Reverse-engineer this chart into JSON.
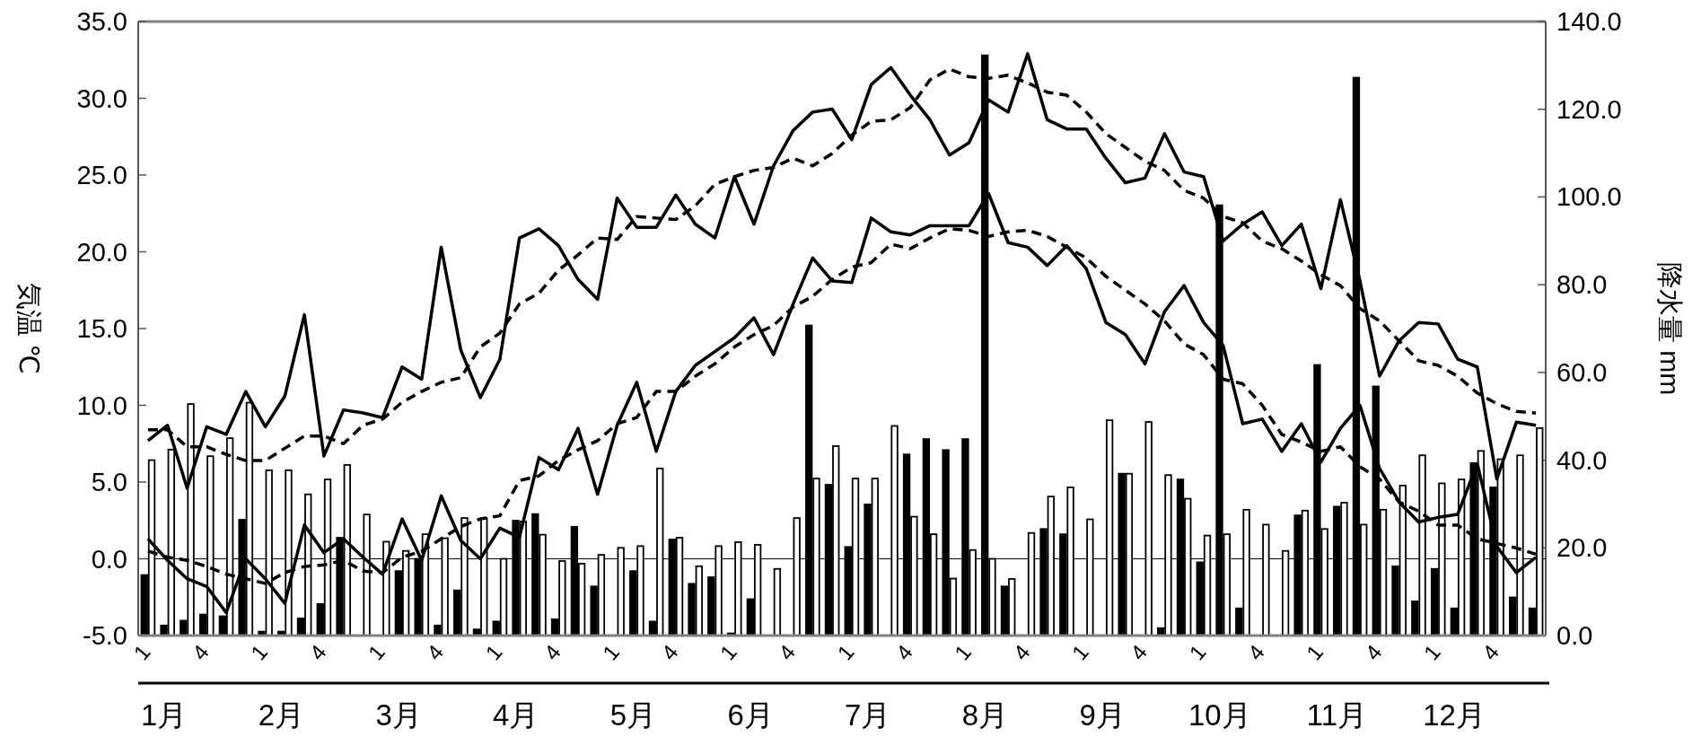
{
  "chart_data": {
    "type": "bar",
    "categories": [
      "1",
      null,
      null,
      "4",
      null,
      null,
      "1",
      null,
      null,
      "4",
      null,
      null,
      "1",
      null,
      null,
      "4",
      null,
      null,
      "1",
      null,
      null,
      "4",
      null,
      null,
      "1",
      null,
      null,
      "4",
      null,
      null,
      "1",
      null,
      null,
      "4",
      null,
      null,
      "1",
      null,
      null,
      "4",
      null,
      null,
      "1",
      null,
      null,
      "4",
      null,
      null,
      "1",
      null,
      null,
      "4",
      null,
      null,
      "1",
      null,
      null,
      "4",
      null,
      null,
      "1",
      null,
      null,
      "4",
      null,
      null,
      "1",
      null,
      null,
      "4",
      null,
      null
    ],
    "series": [
      {
        "axis": "y2",
        "color": "#000000",
        "values": [
          13.8,
          2.3,
          3.4,
          4.8,
          4.4,
          26.4,
          0.9,
          0.9,
          3.9,
          7.2,
          22.3,
          0,
          0,
          14.7,
          17.5,
          2.3,
          10.3,
          1.4,
          3.2,
          26.2,
          27.7,
          3.7,
          24.8,
          11.2,
          0,
          14.7,
          3.2,
          21.9,
          11.8,
          13.3,
          0.5,
          8.3,
          0,
          0,
          70.7,
          34.4,
          20.2,
          29.9,
          0,
          41.3,
          44.8,
          42.3,
          44.8,
          132.3,
          11.2,
          0,
          24.3,
          23.1,
          0,
          0,
          36.9,
          0,
          1.7,
          35.6,
          16.7,
          98.1,
          6.2,
          0,
          0,
          27.4,
          61.7,
          29.4,
          127.2,
          56.8,
          15.8,
          7.8,
          15.2,
          6.2,
          39.3,
          33.8,
          8.7,
          6.2
        ]
      },
      {
        "axis": "y2",
        "color": "#ffffff",
        "values": [
          40.0,
          42.4,
          52.8,
          40.9,
          45.0,
          53.1,
          37.7,
          37.7,
          32.2,
          35.6,
          38.9,
          27.6,
          21.4,
          19.3,
          23.1,
          22.2,
          26.8,
          26.8,
          17.5,
          26.0,
          23.0,
          17.0,
          16.4,
          18.4,
          20.0,
          20.4,
          38.1,
          22.3,
          15.8,
          20.4,
          21.3,
          20.7,
          15.2,
          26.8,
          35.8,
          43.2,
          35.8,
          35.8,
          47.8,
          27.1,
          23.1,
          13.0,
          19.5,
          17.5,
          12.9,
          23.4,
          31.7,
          33.8,
          26.5,
          49.1,
          36.9,
          48.7,
          36.6,
          31.2,
          22.8,
          23.1,
          28.7,
          25.3,
          19.3,
          28.5,
          24.3,
          30.3,
          25.3,
          28.7,
          34.2,
          41.1,
          34.7,
          35.6,
          42.1,
          40.2,
          41.1,
          47.3
        ]
      },
      {
        "type": "line",
        "line_style": "solid",
        "color": "#000000",
        "values": [
          7.7,
          8.7,
          4.6,
          8.6,
          8.1,
          10.9,
          8.6,
          10.6,
          15.9,
          6.7,
          9.7,
          9.5,
          9.2,
          12.5,
          11.7,
          20.3,
          13.6,
          10.5,
          13.0,
          20.9,
          21.5,
          20.4,
          18.2,
          16.9,
          23.5,
          21.6,
          21.6,
          23.7,
          21.8,
          20.9,
          24.9,
          21.8,
          25.6,
          27.9,
          29.1,
          29.3,
          27.3,
          30.9,
          32.0,
          30.2,
          28.6,
          26.3,
          27.1,
          29.9,
          29.1,
          32.9,
          28.6,
          28.0,
          28.0,
          26.1,
          24.5,
          24.8,
          27.7,
          25.2,
          24.9,
          20.7,
          21.8,
          22.6,
          20.4,
          21.8,
          17.6,
          23.4,
          18.1,
          11.9,
          14.2,
          15.4,
          15.3,
          13.0,
          12.5,
          5.2,
          8.9,
          8.7
        ]
      },
      {
        "type": "line",
        "line_style": "dashed",
        "color": "#000000",
        "values": [
          8.4,
          8.4,
          7.3,
          7.3,
          6.8,
          6.4,
          6.4,
          7.2,
          8.0,
          8.0,
          7.5,
          8.7,
          9.1,
          10.2,
          10.9,
          11.5,
          11.8,
          13.8,
          14.7,
          16.6,
          17.3,
          18.8,
          19.8,
          20.9,
          20.8,
          22.3,
          22.2,
          22.1,
          23.0,
          24.4,
          24.9,
          25.3,
          25.5,
          26.1,
          25.6,
          26.4,
          27.6,
          28.5,
          28.6,
          29.4,
          31.2,
          31.9,
          31.4,
          31.3,
          31.5,
          31.0,
          30.4,
          30.2,
          29.1,
          27.7,
          26.8,
          25.9,
          25.3,
          24.0,
          23.5,
          22.3,
          21.9,
          20.7,
          20.2,
          19.4,
          18.5,
          17.8,
          16.3,
          15.5,
          14.2,
          12.9,
          12.6,
          11.9,
          10.8,
          10.1,
          9.6,
          9.5
        ]
      },
      {
        "type": "line",
        "line_style": "solid",
        "color": "#000000",
        "values": [
          1.3,
          -0.1,
          -1.3,
          -1.8,
          -3.5,
          0.0,
          -1.3,
          -2.9,
          2.2,
          0.4,
          1.3,
          0.1,
          -1.0,
          2.6,
          -0.1,
          4.1,
          1.2,
          0.0,
          2.0,
          1.4,
          6.6,
          5.8,
          8.5,
          4.2,
          8.7,
          11.5,
          7.0,
          10.9,
          12.6,
          13.5,
          14.4,
          15.7,
          13.3,
          16.6,
          19.6,
          18.1,
          18.0,
          22.2,
          21.3,
          21.1,
          21.7,
          21.7,
          21.7,
          23.8,
          20.6,
          20.3,
          19.1,
          20.4,
          18.9,
          15.4,
          14.6,
          12.7,
          16.1,
          17.8,
          15.4,
          13.9,
          8.8,
          9.1,
          7.0,
          8.8,
          6.3,
          8.5,
          10.0,
          5.9,
          3.7,
          2.4,
          2.7,
          2.9,
          6.2,
          0.8,
          -0.9,
          0.1
        ]
      },
      {
        "type": "line",
        "line_style": "dashed",
        "color": "#000000",
        "values": [
          0.5,
          0.1,
          -0.1,
          -0.5,
          -1.0,
          -1.3,
          -1.6,
          -0.9,
          -0.5,
          -0.4,
          -0.1,
          -0.8,
          -0.9,
          0.1,
          0.5,
          1.3,
          2.1,
          2.6,
          2.8,
          5.1,
          5.4,
          6.4,
          7.1,
          7.7,
          8.8,
          9.2,
          10.9,
          10.9,
          11.9,
          12.7,
          13.8,
          14.6,
          15.2,
          16.4,
          17.1,
          18.2,
          19.0,
          19.3,
          20.5,
          20.2,
          20.9,
          21.5,
          21.4,
          21.0,
          21.3,
          21.4,
          21.0,
          20.3,
          19.6,
          18.4,
          17.5,
          16.6,
          15.5,
          14.0,
          13.3,
          11.7,
          11.4,
          10.0,
          8.1,
          7.6,
          7.0,
          7.3,
          6.0,
          5.2,
          3.7,
          3.1,
          2.2,
          2.2,
          1.3,
          1.0,
          0.7,
          0.3
        ]
      }
    ],
    "ylabel": "気温 ℃",
    "y2label": "降水量 mm",
    "ylim": [
      -5,
      35
    ],
    "yticks": [
      {
        "value": -5,
        "label": "-5.0"
      },
      {
        "value": 0,
        "label": "0.0"
      },
      {
        "value": 5,
        "label": "5.0"
      },
      {
        "value": 10,
        "label": "10.0"
      },
      {
        "value": 15,
        "label": "15.0"
      },
      {
        "value": 20,
        "label": "20.0"
      },
      {
        "value": 25,
        "label": "25.0"
      },
      {
        "value": 30,
        "label": "30.0"
      },
      {
        "value": 35,
        "label": "35.0"
      }
    ],
    "y2lim": [
      0,
      140
    ],
    "y2ticks": [
      {
        "value": 0,
        "label": "0.0"
      },
      {
        "value": 20,
        "label": "20.0"
      },
      {
        "value": 40,
        "label": "40.0"
      },
      {
        "value": 60,
        "label": "60.0"
      },
      {
        "value": 80,
        "label": "80.0"
      },
      {
        "value": 100,
        "label": "100.0"
      },
      {
        "value": 120,
        "label": "120.0"
      },
      {
        "value": 140,
        "label": "140.0"
      }
    ],
    "ref_lines": [
      {
        "axis": "y",
        "value": 0,
        "color": "#000000"
      }
    ],
    "marker": "none",
    "annotations": [
      "1月",
      "2月",
      "3月",
      "4月",
      "5月",
      "6月",
      "7月",
      "8月",
      "9月",
      "10月",
      "11月",
      "12月"
    ]
  }
}
